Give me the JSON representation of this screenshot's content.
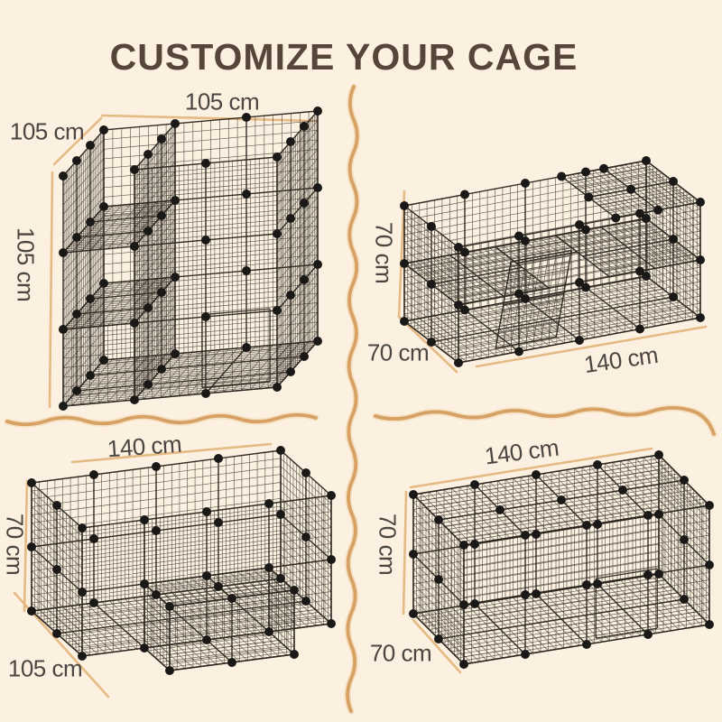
{
  "title": "CUSTOMIZE YOUR CAGE",
  "colors": {
    "background": "#fcf1e0",
    "title": "#564639",
    "label": "#4b4641",
    "divider": "#d7a164",
    "divider_halo": "#ecd0a4",
    "dim_line": "#e5ba84",
    "wire": "#3b362e",
    "frame": "#2a261f",
    "dot": "#1b1917"
  },
  "cages": [
    {
      "name": "cube-cage",
      "dims": {
        "width": "105 cm",
        "depth": "105 cm",
        "height": "105 cm"
      }
    },
    {
      "name": "two-tier-ramp-cage",
      "dims": {
        "width": "140 cm",
        "depth": "70 cm",
        "height": "70 cm"
      }
    },
    {
      "name": "l-shaped-cage",
      "dims": {
        "width": "140 cm",
        "depth": "105 cm",
        "height": "70 cm"
      }
    },
    {
      "name": "fully-enclosed-cage",
      "dims": {
        "width": "140 cm",
        "depth": "70 cm",
        "height": "70 cm"
      }
    }
  ]
}
